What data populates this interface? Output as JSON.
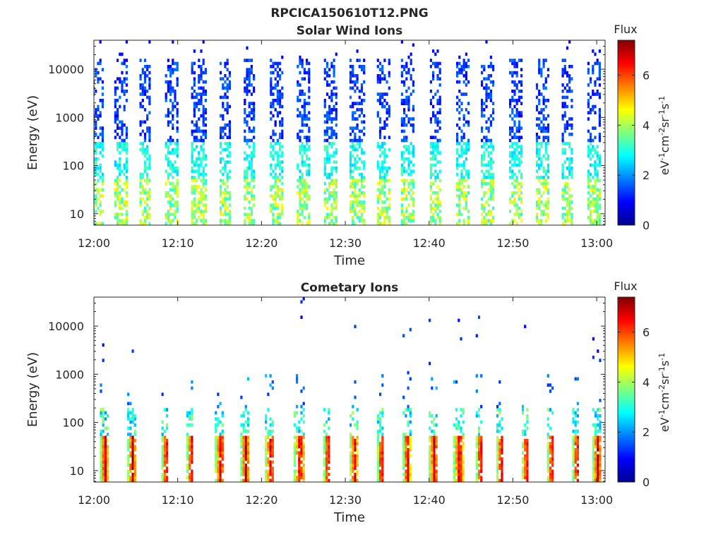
{
  "figure": {
    "title": "RPCICA150610T12.PNG"
  },
  "colorbar": {
    "label": "Flux",
    "unit_base": "eV",
    "unit_parts": [
      {
        "base": "eV",
        "exp": "-1"
      },
      {
        "base": "cm",
        "exp": "-2"
      },
      {
        "base": "sr",
        "exp": "-1"
      },
      {
        "base": "s",
        "exp": "-1"
      }
    ],
    "range": [
      0,
      7.4
    ],
    "ticks": [
      "0",
      "2",
      "4",
      "6"
    ],
    "colormap": "jet"
  },
  "chart_data": [
    {
      "type": "heatmap",
      "title": "Solar Wind Ions",
      "xlabel": "Time",
      "ylabel": "Energy (eV)",
      "x_ticks": [
        "12:00",
        "12:10",
        "12:20",
        "12:30",
        "12:40",
        "12:50",
        "13:00"
      ],
      "y_ticks": [
        "10",
        "100",
        "1000",
        "10000"
      ],
      "xlim": [
        "12:00",
        "13:01"
      ],
      "ylim": [
        5.8,
        40000
      ],
      "y_scale": "log",
      "value_range": [
        0,
        7.4
      ],
      "description_of_values": "Vertical bursts roughly every 3 minutes spanning ~6 eV to ~15000 eV; flux ~1-2 above 300 eV (blue), ~2.5-3.5 between 50-300 eV (cyan), up to ~4.5-5 below 40 eV (green/yellow).",
      "burst_times_min": [
        0.5,
        3.2,
        6.1,
        9.3,
        12.5,
        15.7,
        18.5,
        21.8,
        25.0,
        28.2,
        31.4,
        34.6,
        37.5,
        40.8,
        44.0,
        47.0,
        50.3,
        53.5,
        56.5,
        59.7
      ]
    },
    {
      "type": "heatmap",
      "title": "Cometary Ions",
      "xlabel": "Time",
      "ylabel": "Energy (eV)",
      "x_ticks": [
        "12:00",
        "12:10",
        "12:20",
        "12:30",
        "12:40",
        "12:50",
        "13:00"
      ],
      "y_ticks": [
        "10",
        "100",
        "1000",
        "10000"
      ],
      "xlim": [
        "12:00",
        "13:01"
      ],
      "ylim": [
        5.8,
        40000
      ],
      "y_scale": "log",
      "value_range": [
        0,
        7.4
      ],
      "description_of_values": "Bursts roughly every 3 minutes concentrated below ~300 eV; peak flux ~6-7 (orange/red) at 8-40 eV, sparse low-flux (~1) points up to ~30000 eV.",
      "burst_times_min": [
        1.2,
        4.5,
        8.5,
        11.5,
        15.0,
        18.0,
        21.0,
        24.5,
        27.8,
        31.0,
        34.2,
        37.3,
        40.5,
        43.5,
        46.0,
        48.5,
        51.5,
        54.5,
        57.5,
        60.0
      ]
    }
  ]
}
